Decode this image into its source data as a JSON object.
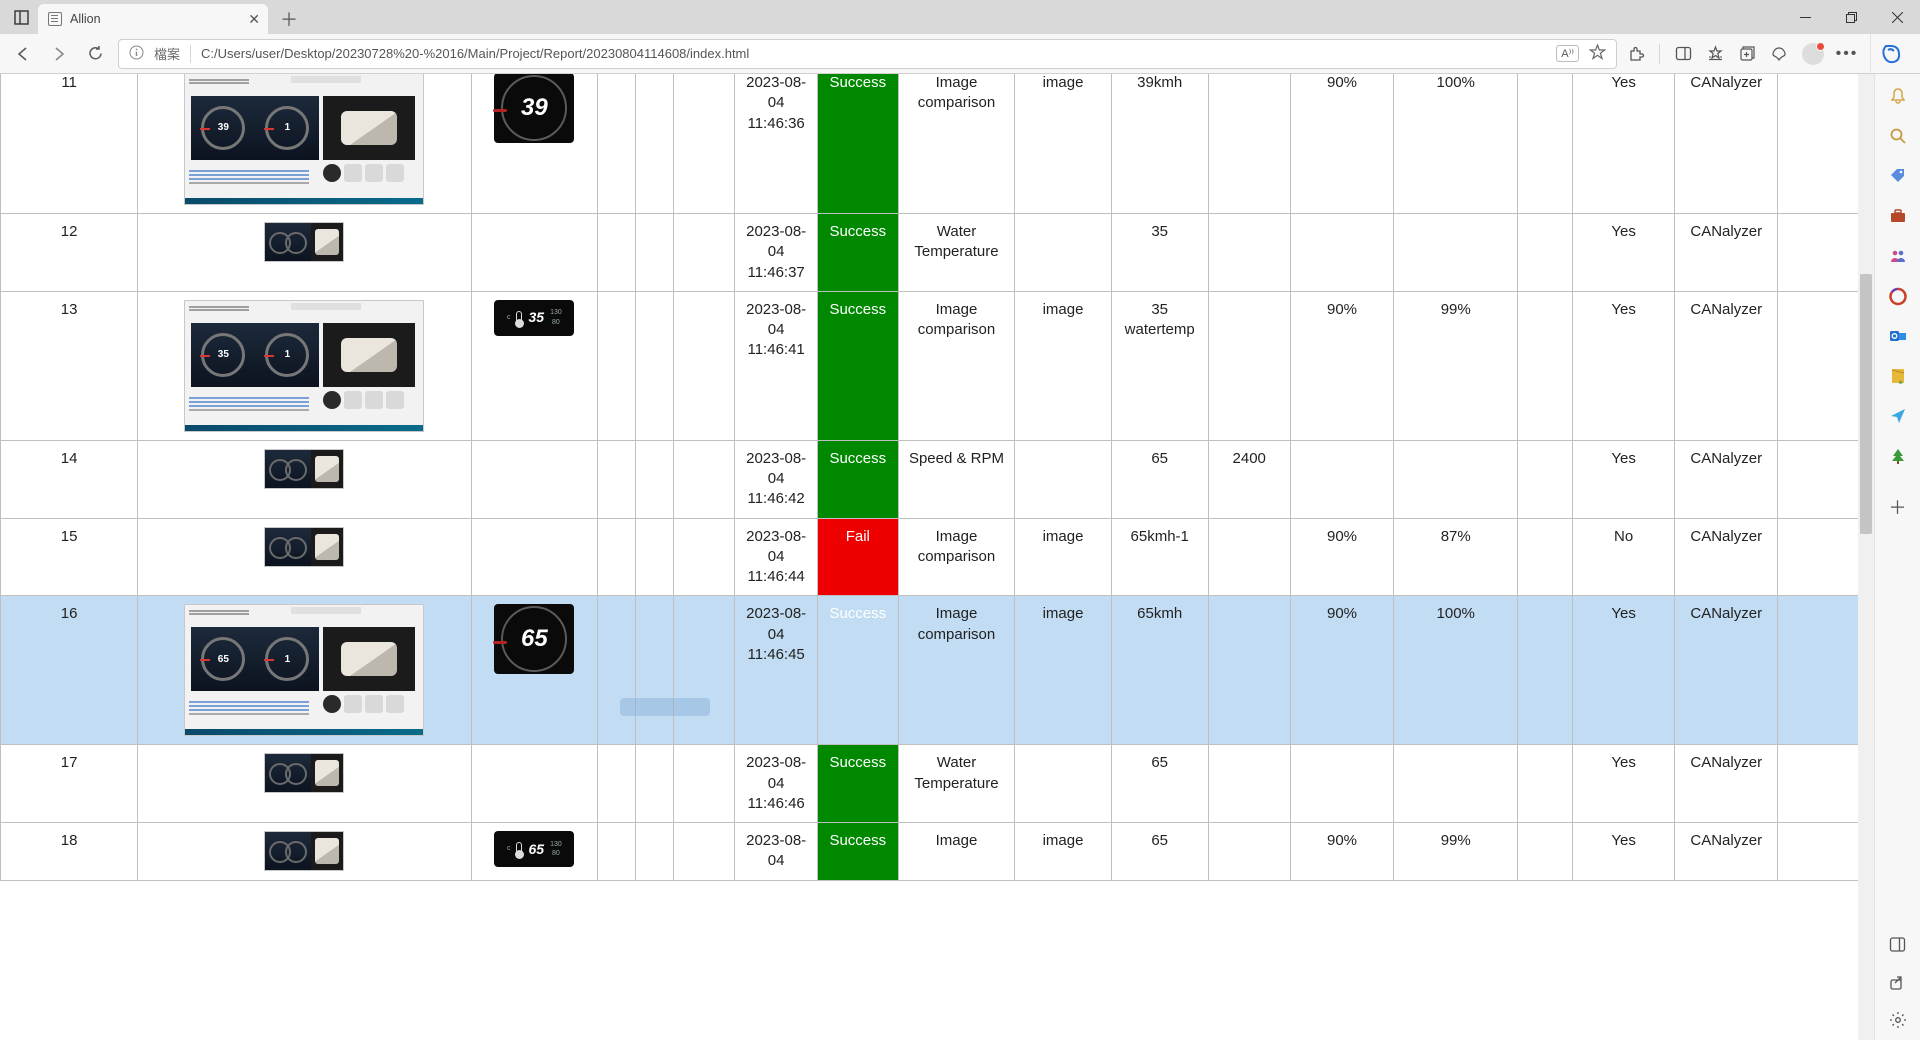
{
  "browser": {
    "tab_title": "Allion",
    "file_label": "檔案",
    "url": "C:/Users/user/Desktop/20230728%20-%2016/Main/Project/Report/20230804114608/index.html",
    "readaloud_label": "A⁾⁾"
  },
  "status_labels": {
    "success": "Success",
    "fail": "Fail"
  },
  "rows": [
    {
      "idx": "11",
      "thumb": "large",
      "crop": {
        "type": "speed",
        "val": "39"
      },
      "time": "2023-08-04 11:46:36",
      "status": "success",
      "action": "Image comparison",
      "param": "image",
      "val1": "39kmh",
      "val2": "",
      "thr": "90%",
      "res": "100%",
      "yes": "Yes",
      "tool": "CANalyzer",
      "hl": false
    },
    {
      "idx": "12",
      "thumb": "small",
      "crop": null,
      "time": "2023-08-04 11:46:37",
      "status": "success",
      "action": "Water Temperature",
      "param": "",
      "val1": "35",
      "val2": "",
      "thr": "",
      "res": "",
      "yes": "Yes",
      "tool": "CANalyzer",
      "hl": false
    },
    {
      "idx": "13",
      "thumb": "large",
      "crop": {
        "type": "temp",
        "val": "35"
      },
      "time": "2023-08-04 11:46:41",
      "status": "success",
      "action": "Image comparison",
      "param": "image",
      "val1": "35 watertemp",
      "val2": "",
      "thr": "90%",
      "res": "99%",
      "yes": "Yes",
      "tool": "CANalyzer",
      "hl": false
    },
    {
      "idx": "14",
      "thumb": "small",
      "crop": null,
      "time": "2023-08-04 11:46:42",
      "status": "success",
      "action": "Speed & RPM",
      "param": "",
      "val1": "65",
      "val2": "2400",
      "thr": "",
      "res": "",
      "yes": "Yes",
      "tool": "CANalyzer",
      "hl": false
    },
    {
      "idx": "15",
      "thumb": "small",
      "crop": null,
      "time": "2023-08-04 11:46:44",
      "status": "fail",
      "action": "Image comparison",
      "param": "image",
      "val1": "65kmh-1",
      "val2": "",
      "thr": "90%",
      "res": "87%",
      "yes": "No",
      "tool": "CANalyzer",
      "hl": false
    },
    {
      "idx": "16",
      "thumb": "large",
      "crop": {
        "type": "speed",
        "val": "65"
      },
      "time": "2023-08-04 11:46:45",
      "status": "success",
      "action": "Image comparison",
      "param": "image",
      "val1": "65kmh",
      "val2": "",
      "thr": "90%",
      "res": "100%",
      "yes": "Yes",
      "tool": "CANalyzer",
      "hl": true
    },
    {
      "idx": "17",
      "thumb": "small",
      "crop": null,
      "time": "2023-08-04 11:46:46",
      "status": "success",
      "action": "Water Temperature",
      "param": "",
      "val1": "65",
      "val2": "",
      "thr": "",
      "res": "",
      "yes": "Yes",
      "tool": "CANalyzer",
      "hl": false
    },
    {
      "idx": "18",
      "thumb": "small",
      "crop": {
        "type": "temp",
        "val": "65"
      },
      "time": "2023-08-04",
      "status": "success",
      "action": "Image",
      "param": "image",
      "val1": "65",
      "val2": "",
      "thr": "90%",
      "res": "99%",
      "yes": "Yes",
      "tool": "CANalyzer",
      "hl": false
    }
  ],
  "sidebar_icons": [
    "bell",
    "search",
    "tag",
    "briefcase",
    "people",
    "cycle",
    "outlook",
    "note",
    "send",
    "tree"
  ]
}
